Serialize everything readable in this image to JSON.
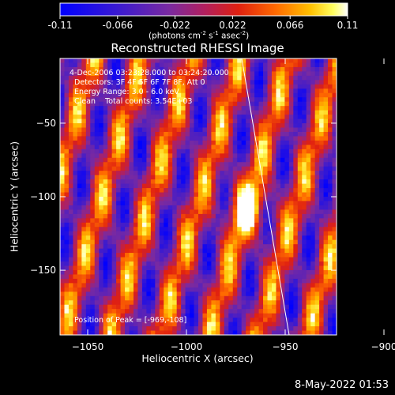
{
  "colorbar": {
    "ticks": [
      "-0.11",
      "-0.066",
      "-0.022",
      "0.022",
      "0.066",
      "0.11"
    ],
    "tick_values": [
      -0.11,
      -0.066,
      -0.022,
      0.022,
      0.066,
      0.11
    ],
    "units_prefix": "(photons cm",
    "units_exp1": "-2",
    "units_mid1": " s",
    "units_exp2": "-1",
    "units_mid2": " asec",
    "units_exp3": "-2",
    "units_suffix": ")",
    "colormap": "blue-purple-red-yellow-white"
  },
  "title": "Reconstructed RHESSI Image",
  "annotations": {
    "time_range": "4-Dec-2006 03:23:28.000 to 03:24:20.000",
    "detectors": "Detectors: 3F 4F 5F 6F 7F 8F, Att 0",
    "energy": "Energy Range: 3.0 - 6.0 keV",
    "clean": "Clean    Total counts: 3.54E+03",
    "peak": "Position of Peak = [-969,-108]"
  },
  "footer_timestamp": "8-May-2022 01:53",
  "chart_data": {
    "type": "heatmap",
    "title": "Reconstructed RHESSI Image",
    "xlabel": "Heliocentric X (arcsec)",
    "ylabel": "Heliocentric Y (arcsec)",
    "xlim": [
      -1064,
      -924
    ],
    "ylim": [
      -194,
      -6
    ],
    "x_ticks": [
      -1050,
      -1000,
      -950,
      -900
    ],
    "x_tick_labels": [
      "−1050",
      "−1000",
      "−950",
      "−900"
    ],
    "y_ticks": [
      -50,
      -100,
      -150
    ],
    "y_tick_labels": [
      "−50",
      "−100",
      "−150"
    ],
    "value_range": [
      -0.11,
      0.11
    ],
    "peak": {
      "x": -969,
      "y": -108
    },
    "limb_line": [
      [
        -972,
        -6
      ],
      [
        -948,
        -194
      ]
    ],
    "pattern": "diagonal positive-negative stripes with bright peak near center"
  }
}
